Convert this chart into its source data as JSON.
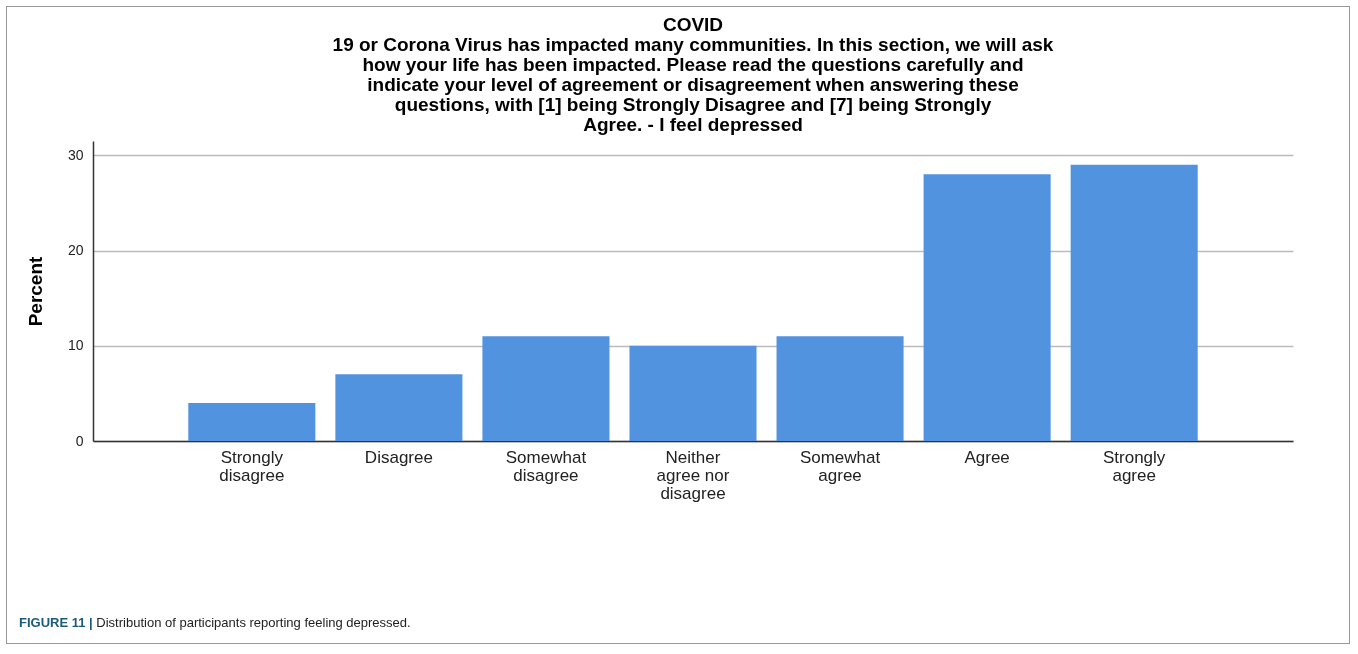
{
  "chart_data": {
    "type": "bar",
    "title": "COVID\n19 or Corona Virus has impacted many communities. In this section, we will ask\nhow your life has been impacted. Please read the questions carefully and\nindicate your level of agreement or disagreement when answering these\nquestions, with [1] being Strongly Disagree and [7] being Strongly\nAgree. - I feel depressed",
    "ylabel": "Percent",
    "categories": [
      "Strongly disagree",
      "Disagree",
      "Somewhat disagree",
      "Neither agree nor disagree",
      "Somewhat agree",
      "Agree",
      "Strongly agree"
    ],
    "values": [
      4,
      7,
      11,
      10,
      11,
      28,
      29
    ],
    "color": "#5293e0",
    "ylim": [
      0,
      31.5
    ],
    "yticks": [
      0,
      10,
      20,
      30
    ],
    "grid": "y",
    "annotations": [
      "FIGURE 11 | Distribution of participants reporting feeling depressed."
    ]
  }
}
